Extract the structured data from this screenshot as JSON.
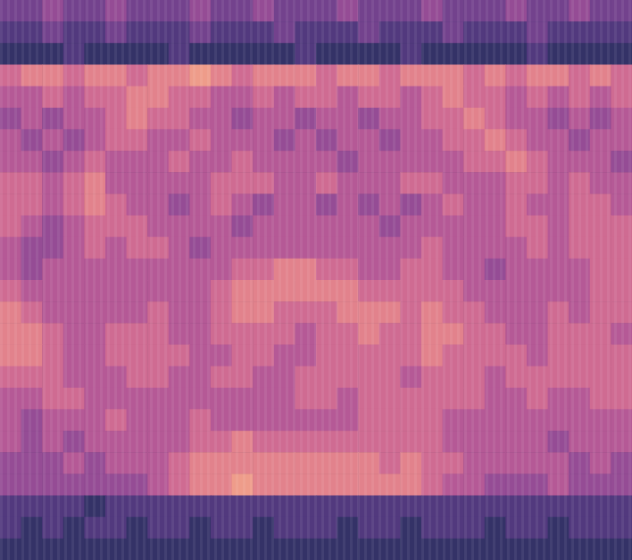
{
  "chart_data": {
    "type": "heatmap",
    "tick_labels": false,
    "zlim": [
      0,
      9
    ],
    "cells": [
      [
        3,
        3,
        4,
        3,
        3,
        4,
        3,
        3,
        3,
        4,
        3,
        3,
        4,
        3,
        3,
        3,
        4,
        3,
        3,
        3,
        4,
        3,
        3,
        3,
        4,
        3,
        3,
        4,
        3,
        3
      ],
      [
        2,
        2,
        3,
        2,
        2,
        3,
        2,
        2,
        2,
        3,
        2,
        2,
        2,
        3,
        2,
        2,
        2,
        3,
        2,
        2,
        2,
        3,
        2,
        2,
        2,
        3,
        2,
        2,
        2,
        2
      ],
      [
        1,
        1,
        1,
        2,
        1,
        1,
        1,
        1,
        2,
        1,
        1,
        1,
        1,
        1,
        2,
        1,
        1,
        1,
        1,
        2,
        1,
        1,
        1,
        1,
        1,
        2,
        1,
        1,
        1,
        1
      ],
      [
        6,
        7,
        7,
        6,
        7,
        7,
        6,
        7,
        7,
        8,
        7,
        6,
        7,
        7,
        7,
        6,
        7,
        7,
        6,
        7,
        7,
        7,
        6,
        7,
        6,
        7,
        7,
        6,
        7,
        6
      ],
      [
        5,
        5,
        6,
        5,
        6,
        6,
        7,
        7,
        6,
        6,
        5,
        5,
        6,
        5,
        6,
        6,
        5,
        6,
        6,
        5,
        6,
        7,
        6,
        6,
        5,
        6,
        5,
        6,
        5,
        6
      ],
      [
        4,
        5,
        4,
        5,
        5,
        6,
        7,
        6,
        6,
        5,
        5,
        4,
        5,
        5,
        4,
        5,
        5,
        4,
        5,
        5,
        6,
        6,
        7,
        6,
        5,
        5,
        4,
        5,
        4,
        5
      ],
      [
        5,
        4,
        5,
        4,
        5,
        6,
        6,
        5,
        5,
        6,
        5,
        5,
        5,
        4,
        5,
        4,
        5,
        5,
        4,
        5,
        5,
        6,
        6,
        7,
        6,
        5,
        5,
        4,
        5,
        5
      ],
      [
        5,
        5,
        4,
        5,
        6,
        5,
        5,
        5,
        6,
        5,
        5,
        6,
        5,
        5,
        5,
        5,
        4,
        5,
        5,
        5,
        5,
        5,
        6,
        6,
        7,
        6,
        5,
        5,
        5,
        4
      ],
      [
        6,
        6,
        5,
        6,
        7,
        5,
        5,
        5,
        5,
        5,
        6,
        6,
        6,
        5,
        5,
        6,
        5,
        5,
        5,
        6,
        6,
        5,
        5,
        5,
        6,
        6,
        5,
        6,
        5,
        5
      ],
      [
        6,
        6,
        5,
        6,
        7,
        6,
        5,
        5,
        4,
        5,
        6,
        5,
        4,
        5,
        5,
        4,
        5,
        4,
        5,
        4,
        5,
        6,
        5,
        5,
        6,
        5,
        5,
        6,
        6,
        5
      ],
      [
        6,
        5,
        4,
        5,
        6,
        6,
        6,
        5,
        5,
        5,
        5,
        4,
        5,
        5,
        5,
        5,
        5,
        5,
        4,
        5,
        5,
        5,
        5,
        5,
        6,
        6,
        5,
        6,
        6,
        6
      ],
      [
        5,
        4,
        4,
        5,
        6,
        5,
        6,
        6,
        5,
        4,
        5,
        5,
        5,
        5,
        5,
        5,
        5,
        5,
        5,
        5,
        6,
        5,
        5,
        5,
        5,
        6,
        5,
        6,
        6,
        6
      ],
      [
        5,
        4,
        5,
        5,
        5,
        5,
        5,
        5,
        5,
        5,
        5,
        6,
        6,
        7,
        7,
        6,
        6,
        5,
        5,
        6,
        6,
        5,
        5,
        4,
        5,
        5,
        5,
        5,
        6,
        6
      ],
      [
        6,
        5,
        5,
        5,
        5,
        5,
        5,
        5,
        5,
        5,
        6,
        7,
        7,
        7,
        7,
        7,
        7,
        6,
        6,
        6,
        6,
        6,
        5,
        5,
        5,
        5,
        5,
        5,
        6,
        6
      ],
      [
        7,
        6,
        5,
        5,
        5,
        5,
        5,
        6,
        5,
        5,
        6,
        7,
        7,
        6,
        6,
        6,
        7,
        7,
        7,
        6,
        7,
        6,
        6,
        5,
        5,
        5,
        6,
        5,
        6,
        6
      ],
      [
        7,
        7,
        6,
        5,
        5,
        6,
        6,
        6,
        5,
        5,
        6,
        6,
        6,
        6,
        5,
        6,
        6,
        7,
        6,
        6,
        7,
        7,
        6,
        6,
        5,
        5,
        6,
        6,
        6,
        5
      ],
      [
        7,
        7,
        6,
        5,
        5,
        6,
        6,
        6,
        6,
        5,
        5,
        6,
        6,
        5,
        5,
        6,
        6,
        6,
        6,
        6,
        7,
        6,
        6,
        6,
        6,
        5,
        6,
        6,
        6,
        6
      ],
      [
        6,
        6,
        6,
        5,
        5,
        5,
        6,
        6,
        5,
        5,
        6,
        6,
        5,
        5,
        6,
        6,
        6,
        6,
        6,
        5,
        6,
        6,
        6,
        5,
        6,
        6,
        6,
        6,
        6,
        6
      ],
      [
        5,
        5,
        6,
        6,
        5,
        5,
        5,
        5,
        5,
        5,
        5,
        5,
        5,
        5,
        6,
        6,
        5,
        6,
        6,
        6,
        6,
        6,
        6,
        5,
        5,
        6,
        5,
        5,
        6,
        6
      ],
      [
        5,
        4,
        5,
        5,
        5,
        6,
        5,
        5,
        5,
        6,
        5,
        5,
        5,
        5,
        5,
        5,
        5,
        6,
        6,
        6,
        6,
        5,
        5,
        5,
        5,
        5,
        5,
        5,
        5,
        5
      ],
      [
        5,
        4,
        5,
        4,
        5,
        5,
        5,
        5,
        5,
        6,
        6,
        7,
        6,
        6,
        6,
        6,
        6,
        6,
        6,
        6,
        6,
        5,
        5,
        5,
        5,
        5,
        4,
        5,
        5,
        5
      ],
      [
        4,
        4,
        4,
        5,
        4,
        5,
        5,
        5,
        6,
        7,
        7,
        7,
        7,
        7,
        7,
        7,
        7,
        7,
        6,
        7,
        6,
        6,
        5,
        5,
        5,
        5,
        5,
        4,
        5,
        4
      ],
      [
        4,
        4,
        4,
        4,
        4,
        4,
        4,
        5,
        6,
        7,
        7,
        8,
        7,
        7,
        7,
        7,
        7,
        7,
        7,
        7,
        6,
        5,
        5,
        4,
        4,
        4,
        5,
        4,
        4,
        4
      ],
      [
        2,
        2,
        2,
        2,
        1,
        2,
        2,
        2,
        2,
        2,
        2,
        2,
        2,
        2,
        2,
        2,
        2,
        2,
        2,
        2,
        2,
        2,
        2,
        2,
        2,
        2,
        2,
        2,
        2,
        2
      ],
      [
        2,
        1,
        2,
        1,
        2,
        2,
        1,
        2,
        2,
        1,
        2,
        2,
        1,
        2,
        2,
        2,
        1,
        2,
        2,
        1,
        2,
        2,
        2,
        1,
        2,
        2,
        1,
        2,
        2,
        2
      ],
      [
        1,
        1,
        1,
        1,
        1,
        1,
        1,
        1,
        1,
        1,
        1,
        1,
        1,
        1,
        1,
        1,
        1,
        1,
        1,
        1,
        1,
        1,
        1,
        1,
        1,
        1,
        1,
        1,
        1,
        1
      ]
    ]
  }
}
